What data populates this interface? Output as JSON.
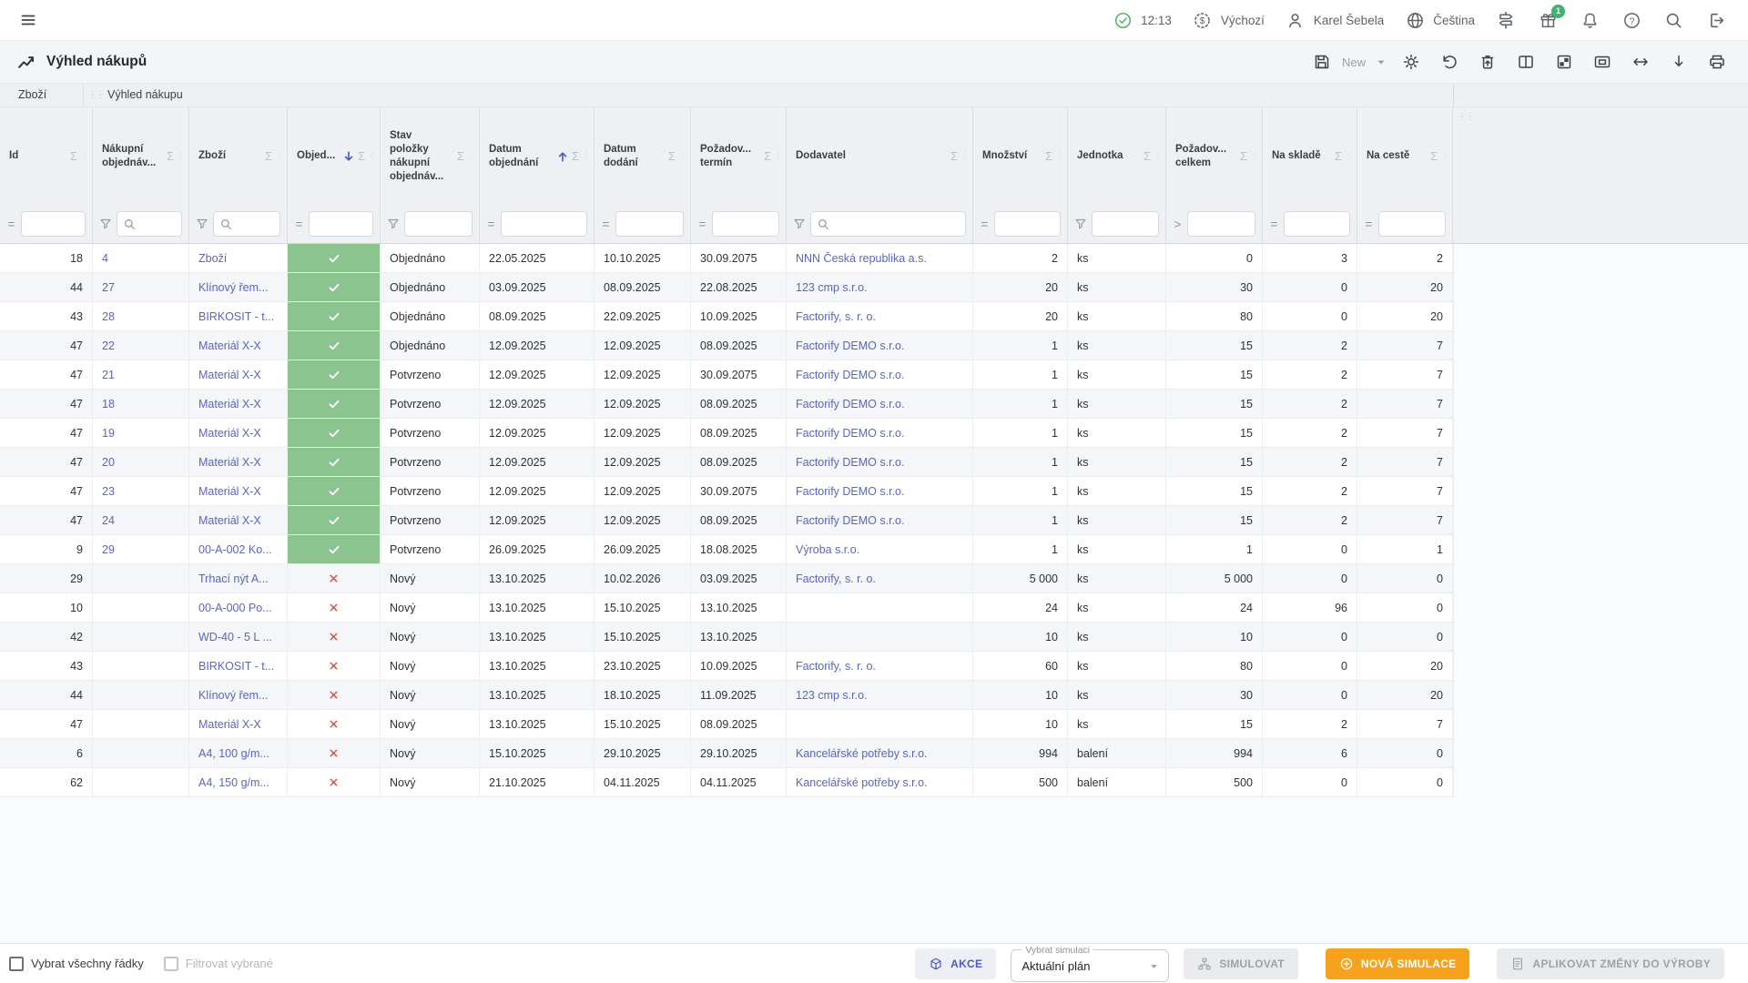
{
  "topbar": {
    "time": "12:13",
    "profile_label": "Výchozí",
    "user_name": "Karel Šebela",
    "language": "Čeština",
    "gift_badge_count": "1"
  },
  "titlebar": {
    "title": "Výhled nákupů",
    "save_menu_label": "New"
  },
  "tabs": [
    {
      "label": "Zboží"
    },
    {
      "label": "Výhled nákupu"
    }
  ],
  "grid": {
    "columns": [
      {
        "key": "id",
        "label": "Id",
        "filter": {
          "type": "op",
          "op": "="
        }
      },
      {
        "key": "nakupni_objednavka",
        "label": "Nákupní\nobjednáv...",
        "filter": {
          "type": "search"
        }
      },
      {
        "key": "zbozi",
        "label": "Zboží",
        "filter": {
          "type": "search"
        }
      },
      {
        "key": "objednano",
        "label": "Objed...",
        "sort": "desc",
        "filter": {
          "type": "op",
          "op": "="
        }
      },
      {
        "key": "stav_polozky",
        "label": "Stav\npoložky\nnákupní\nobjednáv...",
        "filter": {
          "type": "select"
        }
      },
      {
        "key": "datum_objednani",
        "label": "Datum\nobjednání",
        "sort": "asc",
        "filter": {
          "type": "op",
          "op": "="
        }
      },
      {
        "key": "datum_dodani",
        "label": "Datum\ndodání",
        "filter": {
          "type": "op",
          "op": "="
        }
      },
      {
        "key": "pozadovany_termin",
        "label": "Požadov...\ntermín",
        "filter": {
          "type": "op",
          "op": "="
        }
      },
      {
        "key": "dodavatel",
        "label": "Dodavatel",
        "filter": {
          "type": "search"
        }
      },
      {
        "key": "mnozstvi",
        "label": "Množství",
        "filter": {
          "type": "op",
          "op": "="
        }
      },
      {
        "key": "jednotka",
        "label": "Jednotka",
        "filter": {
          "type": "select"
        }
      },
      {
        "key": "pozadovano_celkem",
        "label": "Požadov...\ncelkem",
        "filter": {
          "type": "op",
          "op": ">"
        }
      },
      {
        "key": "na_sklade",
        "label": "Na skladě",
        "filter": {
          "type": "op",
          "op": "="
        }
      },
      {
        "key": "na_ceste",
        "label": "Na cestě",
        "filter": {
          "type": "op",
          "op": "="
        }
      }
    ],
    "rows": [
      {
        "cells": [
          "18",
          "4",
          "Zboží",
          "check",
          "Objednáno",
          "22.05.2025",
          "10.10.2025",
          "30.09.2075",
          "NNN Česká republika a.s.",
          "2",
          "ks",
          "0",
          "3",
          "2"
        ]
      },
      {
        "cells": [
          "44",
          "27",
          "Klínový řem...",
          "check",
          "Objednáno",
          "03.09.2025",
          "08.09.2025",
          "22.08.2025",
          "123 cmp s.r.o.",
          "20",
          "ks",
          "30",
          "0",
          "20"
        ]
      },
      {
        "cells": [
          "43",
          "28",
          "BIRKOSIT - t...",
          "check",
          "Objednáno",
          "08.09.2025",
          "22.09.2025",
          "10.09.2025",
          "Factorify, s. r. o.",
          "20",
          "ks",
          "80",
          "0",
          "20"
        ]
      },
      {
        "cells": [
          "47",
          "22",
          "Materiál X-X",
          "check",
          "Objednáno",
          "12.09.2025",
          "12.09.2025",
          "08.09.2025",
          "Factorify DEMO s.r.o.",
          "1",
          "ks",
          "15",
          "2",
          "7"
        ]
      },
      {
        "cells": [
          "47",
          "21",
          "Materiál X-X",
          "check",
          "Potvrzeno",
          "12.09.2025",
          "12.09.2025",
          "30.09.2075",
          "Factorify DEMO s.r.o.",
          "1",
          "ks",
          "15",
          "2",
          "7"
        ]
      },
      {
        "cells": [
          "47",
          "18",
          "Materiál X-X",
          "check",
          "Potvrzeno",
          "12.09.2025",
          "12.09.2025",
          "08.09.2025",
          "Factorify DEMO s.r.o.",
          "1",
          "ks",
          "15",
          "2",
          "7"
        ]
      },
      {
        "cells": [
          "47",
          "19",
          "Materiál X-X",
          "check",
          "Potvrzeno",
          "12.09.2025",
          "12.09.2025",
          "08.09.2025",
          "Factorify DEMO s.r.o.",
          "1",
          "ks",
          "15",
          "2",
          "7"
        ]
      },
      {
        "cells": [
          "47",
          "20",
          "Materiál X-X",
          "check",
          "Potvrzeno",
          "12.09.2025",
          "12.09.2025",
          "08.09.2025",
          "Factorify DEMO s.r.o.",
          "1",
          "ks",
          "15",
          "2",
          "7"
        ]
      },
      {
        "cells": [
          "47",
          "23",
          "Materiál X-X",
          "check",
          "Potvrzeno",
          "12.09.2025",
          "12.09.2025",
          "30.09.2075",
          "Factorify DEMO s.r.o.",
          "1",
          "ks",
          "15",
          "2",
          "7"
        ]
      },
      {
        "cells": [
          "47",
          "24",
          "Materiál X-X",
          "check",
          "Potvrzeno",
          "12.09.2025",
          "12.09.2025",
          "08.09.2025",
          "Factorify DEMO s.r.o.",
          "1",
          "ks",
          "15",
          "2",
          "7"
        ]
      },
      {
        "cells": [
          "9",
          "29",
          "00-A-002 Ko...",
          "check",
          "Potvrzeno",
          "26.09.2025",
          "26.09.2025",
          "18.08.2025",
          "Výroba s.r.o.",
          "1",
          "ks",
          "1",
          "0",
          "1"
        ]
      },
      {
        "cells": [
          "29",
          "",
          "Trhací nýt A...",
          "cross",
          "Nový",
          "13.10.2025",
          "10.02.2026",
          "03.09.2025",
          "Factorify, s. r. o.",
          "5 000",
          "ks",
          "5 000",
          "0",
          "0"
        ]
      },
      {
        "cells": [
          "10",
          "",
          "00-A-000 Po...",
          "cross",
          "Nový",
          "13.10.2025",
          "15.10.2025",
          "13.10.2025",
          "",
          "24",
          "ks",
          "24",
          "96",
          "0"
        ]
      },
      {
        "cells": [
          "42",
          "",
          "WD-40 - 5 L ...",
          "cross",
          "Nový",
          "13.10.2025",
          "15.10.2025",
          "13.10.2025",
          "",
          "10",
          "ks",
          "10",
          "0",
          "0"
        ]
      },
      {
        "cells": [
          "43",
          "",
          "BIRKOSIT - t...",
          "cross",
          "Nový",
          "13.10.2025",
          "23.10.2025",
          "10.09.2025",
          "Factorify, s. r. o.",
          "60",
          "ks",
          "80",
          "0",
          "20"
        ]
      },
      {
        "cells": [
          "44",
          "",
          "Klínový řem...",
          "cross",
          "Nový",
          "13.10.2025",
          "18.10.2025",
          "11.09.2025",
          "123 cmp s.r.o.",
          "10",
          "ks",
          "30",
          "0",
          "20"
        ]
      },
      {
        "cells": [
          "47",
          "",
          "Materiál X-X",
          "cross",
          "Nový",
          "13.10.2025",
          "15.10.2025",
          "08.09.2025",
          "",
          "10",
          "ks",
          "15",
          "2",
          "7"
        ]
      },
      {
        "cells": [
          "6",
          "",
          "A4, 100 g/m...",
          "cross",
          "Nový",
          "15.10.2025",
          "29.10.2025",
          "29.10.2025",
          "Kancelářské potřeby s.r.o.",
          "994",
          "balení",
          "994",
          "6",
          "0"
        ]
      },
      {
        "cells": [
          "62",
          "",
          "A4, 150 g/m...",
          "cross",
          "Nový",
          "21.10.2025",
          "04.11.2025",
          "04.11.2025",
          "Kancelářské potřeby s.r.o.",
          "500",
          "balení",
          "500",
          "0",
          "0"
        ]
      }
    ]
  },
  "bottombar": {
    "select_all_label": "Vybrat všechny řádky",
    "filter_selected_label": "Filtrovat vybrané",
    "action_button": "AKCE",
    "simulation_select_label": "Vybrat simulaci",
    "simulation_value": "Aktuální plán",
    "simulate_button": "SIMULOVAT",
    "new_simulation_button": "NOVÁ SIMULACE",
    "apply_button": "APLIKOVAT ZMĚNY DO VÝROBY"
  },
  "colors": {
    "accent_orange": "#f6a21c",
    "link_blue": "#5766c5",
    "status_green": "#8bc48f",
    "cross_red": "#e53935",
    "badge_green": "#42b072",
    "sort_blue": "#4a5fc8"
  }
}
